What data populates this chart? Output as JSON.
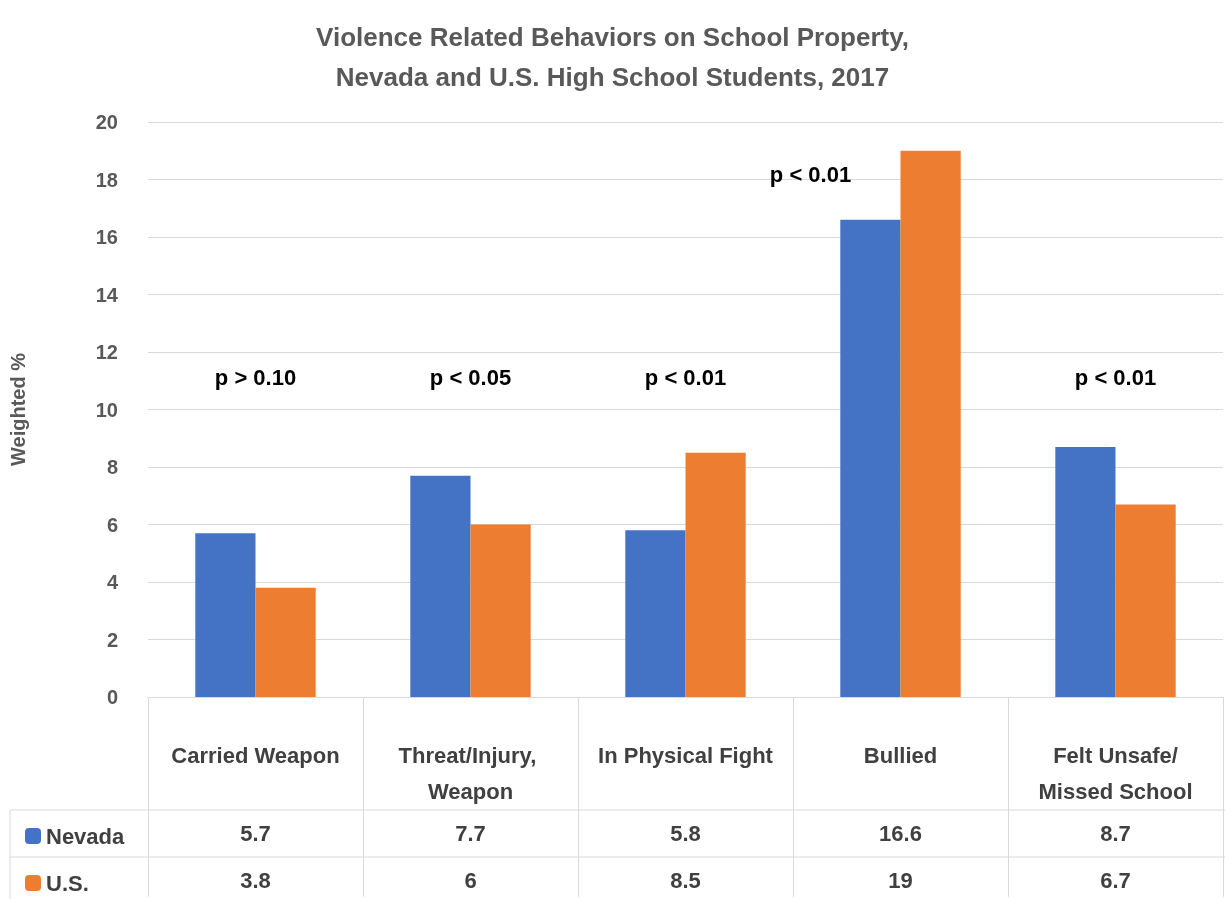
{
  "chart_data": {
    "type": "bar",
    "title": "Violence Related Behaviors on School Property,\nNevada and U.S. High School Students, 2017",
    "ylabel": "Weighted %",
    "categories": [
      "Carried Weapon",
      "Threat/Injury, Weapon",
      "In Physical Fight",
      "Bullied",
      "Felt Unsafe/Missed School"
    ],
    "series": [
      {
        "name": "Nevada",
        "color": "#4472c4",
        "values": [
          5.7,
          7.7,
          5.8,
          16.6,
          8.7
        ]
      },
      {
        "name": "U.S.",
        "color": "#ed7d31",
        "values": [
          3.8,
          6,
          8.5,
          19,
          6.7
        ]
      }
    ],
    "ylim": [
      0,
      20
    ],
    "yticks": [
      0,
      2,
      4,
      6,
      8,
      10,
      12,
      14,
      16,
      18,
      20
    ],
    "grid": "y",
    "legend": "bottom left",
    "data_labels": true,
    "annotations": [
      "p > 0.10",
      "p < 0.05",
      "p < 0.01",
      "p < 0.01",
      "p < 0.01"
    ]
  }
}
